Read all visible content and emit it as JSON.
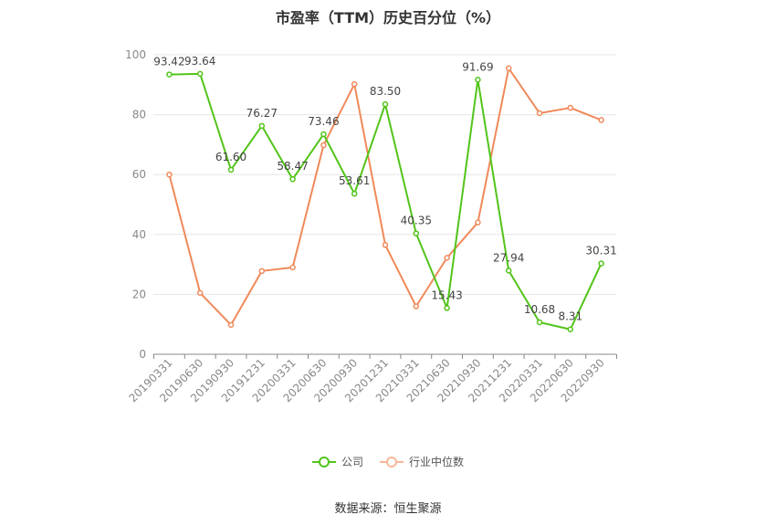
{
  "chart_data": {
    "type": "line",
    "title": "市盈率（TTM）历史百分位（%）",
    "categories": [
      "20190331",
      "20190630",
      "20190930",
      "20191231",
      "20200331",
      "20200630",
      "20200930",
      "20201231",
      "20210331",
      "20210630",
      "20210930",
      "20211231",
      "20220331",
      "20220630",
      "20220930"
    ],
    "ylim": [
      0,
      100
    ],
    "yticks": [
      0,
      20,
      40,
      60,
      80,
      100
    ],
    "grid": true,
    "legend_position": "bottom",
    "series": [
      {
        "name": "公司",
        "color": "#52c41a",
        "show_labels": true,
        "values": [
          93.42,
          93.64,
          61.6,
          76.27,
          58.47,
          73.46,
          53.61,
          83.5,
          40.35,
          15.43,
          91.69,
          27.94,
          10.68,
          8.31,
          30.31
        ]
      },
      {
        "name": "行业中位数",
        "color": "#f0895a",
        "show_labels": false,
        "values": [
          60.0,
          20.5,
          9.8,
          27.8,
          29.0,
          69.8,
          90.2,
          36.5,
          16.0,
          32.2,
          44.0,
          95.5,
          80.5,
          82.3,
          78.2
        ]
      }
    ]
  },
  "source_text": "数据来源：恒生聚源"
}
